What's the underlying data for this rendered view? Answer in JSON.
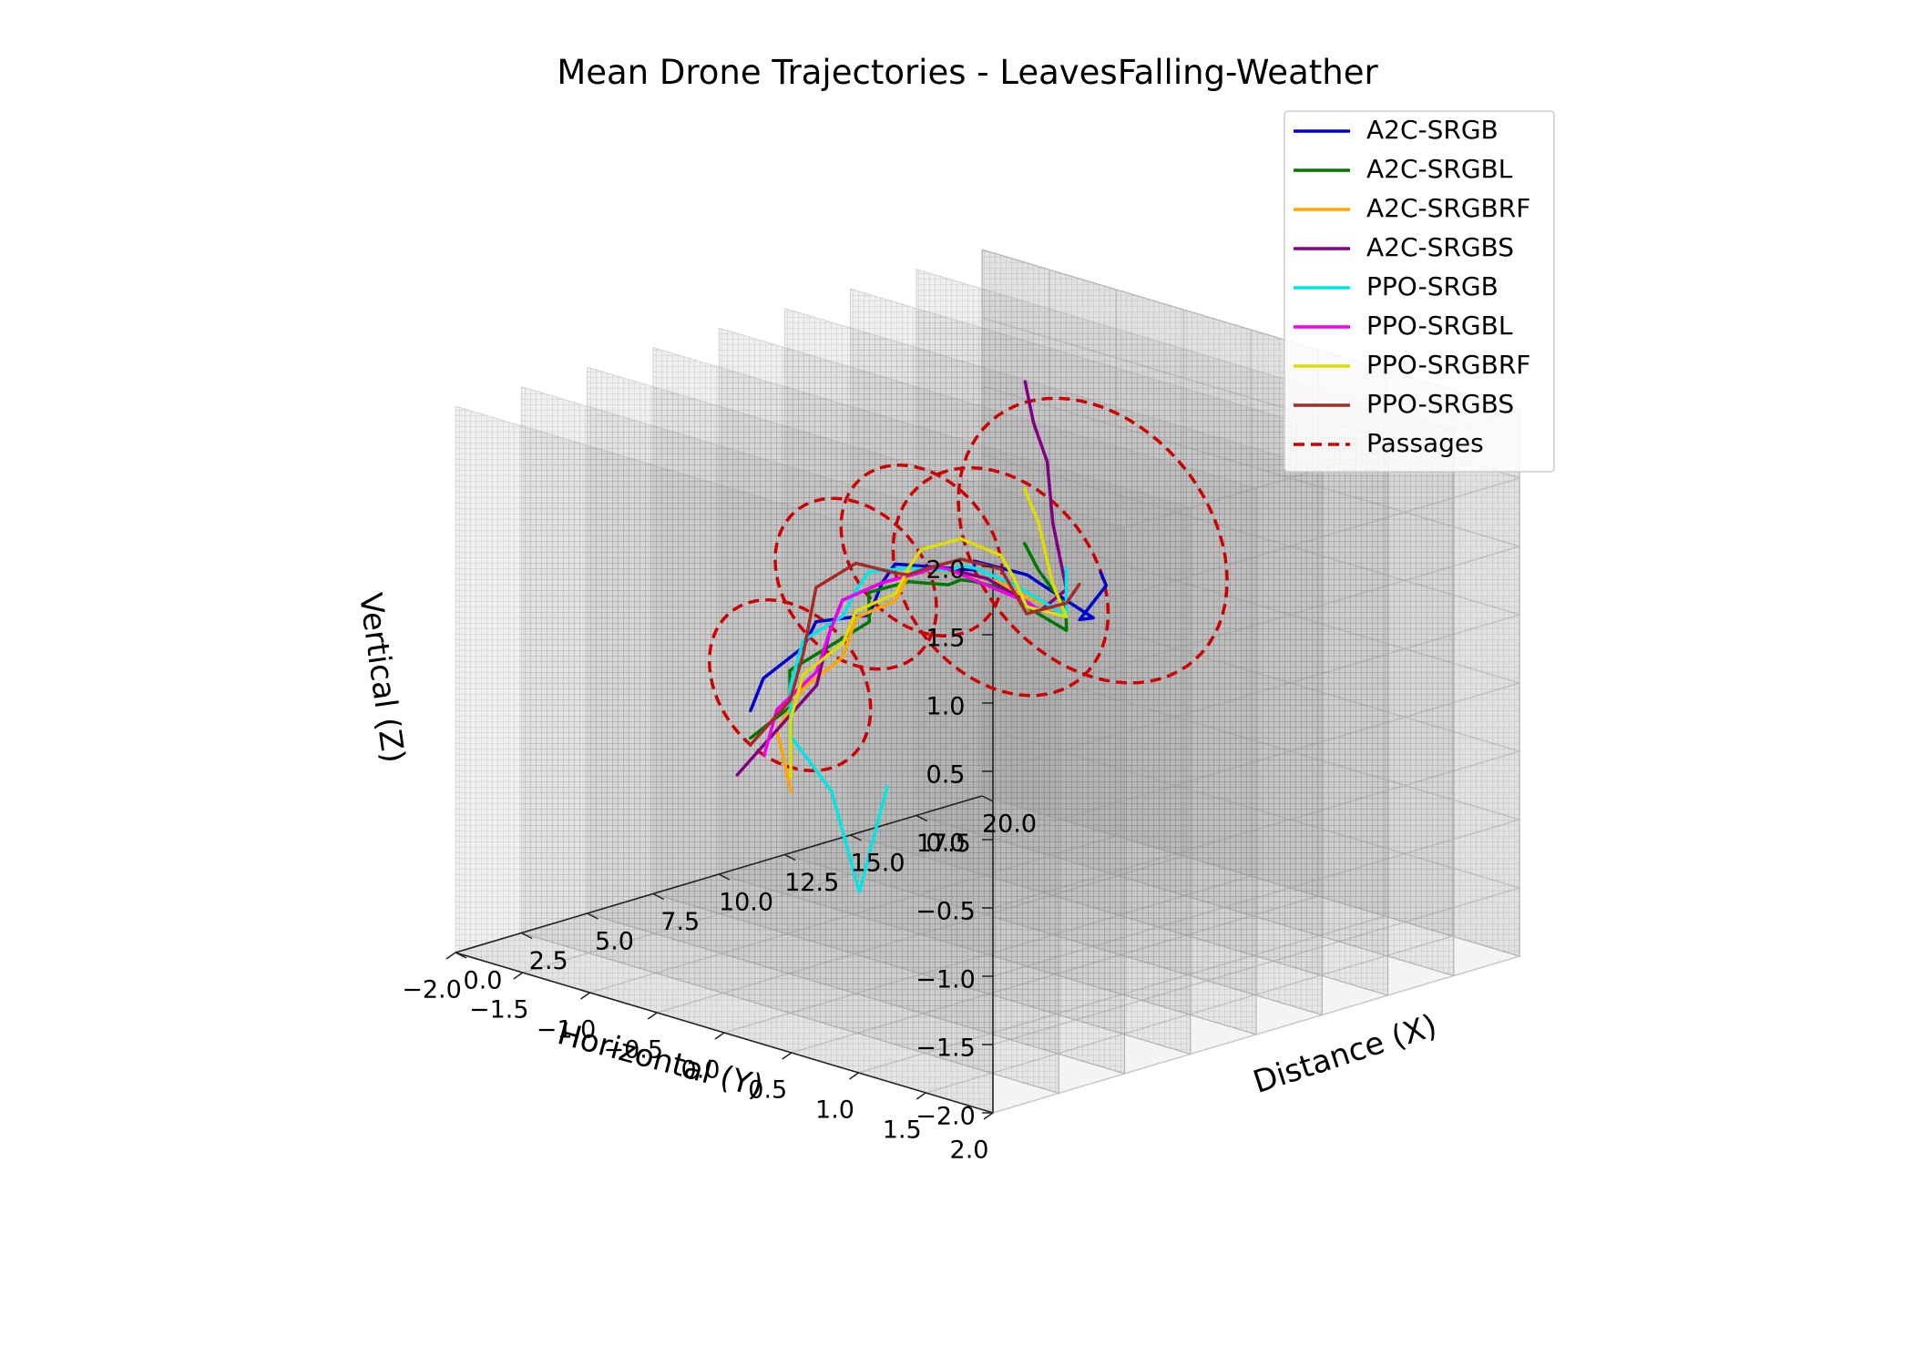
{
  "chart_data": {
    "type": "line3d",
    "title": "Mean Drone Trajectories - LeavesFalling-Weather",
    "xlabel": "Distance (X)",
    "ylabel": "Horizontal (Y)",
    "zlabel": "Vertical (Z)",
    "xlim": [
      0,
      20
    ],
    "ylim": [
      -2,
      2
    ],
    "zlim": [
      -2,
      2
    ],
    "x_ticks": [
      "0.0",
      "2.5",
      "5.0",
      "7.5",
      "10.0",
      "12.5",
      "15.0",
      "17.5",
      "20.0"
    ],
    "y_ticks": [
      "2.0",
      "1.5",
      "1.0",
      "0.5",
      "0.0",
      "−0.5",
      "−1.0",
      "−1.5",
      "−2.0"
    ],
    "z_ticks": [
      "2.0",
      "1.5",
      "1.0",
      "0.5",
      "0.0",
      "−0.5",
      "−1.0",
      "−1.5",
      "−2.0"
    ],
    "grid": true,
    "legend_position": "top-right",
    "series": [
      {
        "name": "A2C-SRGB",
        "color": "#0000cc",
        "points": [
          [
            1.0,
            0.0,
            0.3
          ],
          [
            2.0,
            -0.1,
            0.45
          ],
          [
            3.0,
            0.0,
            0.65
          ],
          [
            4.0,
            -0.1,
            0.75
          ],
          [
            5.0,
            0.1,
            0.8
          ],
          [
            6.0,
            0.0,
            0.95
          ],
          [
            7.0,
            -0.1,
            1.0
          ],
          [
            8.0,
            0.0,
            0.95
          ],
          [
            9.0,
            0.1,
            0.9
          ],
          [
            10.0,
            -0.1,
            0.85
          ],
          [
            11.0,
            0.1,
            0.75
          ],
          [
            12.0,
            0.0,
            0.6
          ],
          [
            13.0,
            0.2,
            0.35
          ],
          [
            13.5,
            0.0,
            0.25
          ],
          [
            14.0,
            0.1,
            0.5
          ],
          [
            14.3,
            0.0,
            0.55
          ]
        ]
      },
      {
        "name": "A2C-SRGBL",
        "color": "#007700",
        "points": [
          [
            1.0,
            0.0,
            0.1
          ],
          [
            2.0,
            0.1,
            0.3
          ],
          [
            3.0,
            -0.1,
            0.45
          ],
          [
            4.0,
            0.0,
            0.6
          ],
          [
            5.0,
            0.1,
            0.75
          ],
          [
            6.0,
            -0.1,
            0.85
          ],
          [
            7.0,
            0.0,
            0.9
          ],
          [
            8.0,
            0.1,
            0.85
          ],
          [
            9.0,
            0.0,
            0.8
          ],
          [
            10.0,
            -0.1,
            0.7
          ],
          [
            11.0,
            0.0,
            0.6
          ],
          [
            12.0,
            -0.1,
            0.4
          ],
          [
            13.0,
            0.0,
            0.2
          ],
          [
            14.0,
            -0.2,
            0.25
          ],
          [
            15.0,
            -0.6,
            0.35
          ],
          [
            16.0,
            -0.9,
            0.4
          ]
        ]
      },
      {
        "name": "A2C-SRGBRF",
        "color": "#ffa500",
        "points": [
          [
            1.0,
            0.3,
            -0.2
          ],
          [
            2.0,
            0.0,
            0.1
          ],
          [
            3.0,
            0.0,
            0.35
          ],
          [
            4.0,
            0.1,
            0.55
          ],
          [
            5.0,
            0.0,
            0.75
          ],
          [
            6.0,
            0.1,
            0.85
          ],
          [
            7.0,
            0.0,
            0.95
          ],
          [
            8.0,
            -0.1,
            0.9
          ],
          [
            9.0,
            0.0,
            0.85
          ],
          [
            10.0,
            0.1,
            0.75
          ],
          [
            11.0,
            0.0,
            0.6
          ],
          [
            12.0,
            0.1,
            0.45
          ],
          [
            13.0,
            0.0,
            0.3
          ]
        ]
      },
      {
        "name": "A2C-SRGBS",
        "color": "#800080",
        "points": [
          [
            1.0,
            -0.1,
            -0.2
          ],
          [
            2.0,
            0.0,
            0.1
          ],
          [
            3.0,
            0.1,
            0.4
          ],
          [
            4.0,
            0.0,
            0.7
          ],
          [
            5.0,
            -0.1,
            0.85
          ],
          [
            6.0,
            0.0,
            0.95
          ],
          [
            7.0,
            0.1,
            1.0
          ],
          [
            8.0,
            0.0,
            0.95
          ],
          [
            9.0,
            -0.1,
            0.85
          ],
          [
            10.0,
            0.0,
            0.75
          ],
          [
            11.0,
            0.1,
            0.55
          ],
          [
            12.0,
            0.0,
            0.4
          ],
          [
            13.0,
            0.0,
            0.5
          ],
          [
            13.5,
            -0.2,
            0.9
          ],
          [
            13.8,
            -0.3,
            1.3
          ],
          [
            14.3,
            -0.5,
            1.5
          ],
          [
            15.0,
            -0.7,
            1.7
          ]
        ]
      },
      {
        "name": "PPO-SRGB",
        "color": "#00e5e5",
        "points": [
          [
            -3.0,
            1.8,
            0.5
          ],
          [
            -1.5,
            1.3,
            -0.5
          ],
          [
            0.0,
            0.8,
            0.0
          ],
          [
            1.0,
            0.3,
            0.2
          ],
          [
            2.0,
            0.1,
            0.45
          ],
          [
            3.0,
            0.0,
            0.7
          ],
          [
            4.0,
            0.1,
            0.85
          ],
          [
            5.0,
            0.0,
            0.95
          ],
          [
            6.0,
            -0.1,
            1.0
          ],
          [
            7.0,
            0.0,
            1.0
          ],
          [
            8.0,
            0.1,
            0.95
          ],
          [
            9.0,
            0.0,
            0.9
          ],
          [
            10.0,
            -0.1,
            0.8
          ],
          [
            11.0,
            0.0,
            0.65
          ],
          [
            12.0,
            0.1,
            0.45
          ],
          [
            13.0,
            0.0,
            0.3
          ],
          [
            13.5,
            -0.1,
            0.6
          ]
        ]
      },
      {
        "name": "PPO-SRGBL",
        "color": "#ee00ee",
        "points": [
          [
            1.0,
            0.1,
            0.0
          ],
          [
            2.0,
            0.0,
            0.25
          ],
          [
            3.0,
            0.1,
            0.5
          ],
          [
            4.0,
            0.0,
            0.7
          ],
          [
            5.0,
            -0.1,
            0.85
          ],
          [
            6.0,
            0.0,
            0.95
          ],
          [
            7.0,
            0.1,
            1.0
          ],
          [
            8.0,
            0.0,
            0.95
          ],
          [
            9.0,
            -0.1,
            0.85
          ],
          [
            10.0,
            0.0,
            0.7
          ],
          [
            11.0,
            0.1,
            0.55
          ],
          [
            12.0,
            0.0,
            0.4
          ],
          [
            13.0,
            -0.1,
            0.3
          ]
        ]
      },
      {
        "name": "PPO-SRGBRF",
        "color": "#dddd00",
        "points": [
          [
            1.0,
            0.3,
            -0.1
          ],
          [
            2.0,
            0.1,
            0.2
          ],
          [
            3.0,
            0.0,
            0.45
          ],
          [
            4.0,
            0.1,
            0.65
          ],
          [
            5.0,
            0.0,
            0.8
          ],
          [
            6.0,
            0.1,
            0.9
          ],
          [
            7.0,
            0.0,
            1.0
          ],
          [
            8.0,
            -0.1,
            1.05
          ],
          [
            9.0,
            0.0,
            1.1
          ],
          [
            10.0,
            0.1,
            0.95
          ],
          [
            11.0,
            0.0,
            0.7
          ],
          [
            12.0,
            -0.1,
            0.4
          ],
          [
            13.0,
            0.0,
            0.3
          ],
          [
            14.0,
            -0.3,
            0.4
          ],
          [
            15.0,
            -0.6,
            0.7
          ],
          [
            16.0,
            -0.9,
            0.8
          ]
        ]
      },
      {
        "name": "PPO-SRGBS",
        "color": "#a52a2a",
        "points": [
          [
            1.0,
            0.0,
            0.05
          ],
          [
            2.0,
            0.1,
            0.35
          ],
          [
            3.0,
            0.0,
            0.6
          ],
          [
            4.0,
            -0.1,
            1.0
          ],
          [
            5.0,
            0.0,
            1.15
          ],
          [
            6.0,
            0.1,
            1.05
          ],
          [
            7.0,
            0.0,
            0.95
          ],
          [
            8.0,
            -0.1,
            0.9
          ],
          [
            9.0,
            0.0,
            0.95
          ],
          [
            10.0,
            0.1,
            0.85
          ],
          [
            11.0,
            0.0,
            0.6
          ],
          [
            12.0,
            -0.1,
            0.35
          ],
          [
            13.0,
            0.0,
            0.4
          ],
          [
            14.0,
            -0.1,
            0.45
          ]
        ]
      }
    ],
    "passages": {
      "name": "Passages",
      "color": "#cc0000",
      "circles": [
        {
          "x": 2.5,
          "y": 0.0,
          "z": 0.4,
          "r": 0.6
        },
        {
          "x": 5.0,
          "y": 0.0,
          "z": 1.0,
          "r": 0.6
        },
        {
          "x": 7.5,
          "y": 0.0,
          "z": 1.1,
          "r": 0.6
        },
        {
          "x": 10.5,
          "y": 0.0,
          "z": 0.7,
          "r": 0.8
        },
        {
          "x": 14.0,
          "y": 0.0,
          "z": 0.8,
          "r": 1.0
        }
      ]
    },
    "walls": [
      0,
      2.5,
      5,
      7.5,
      10,
      12.5,
      15,
      17.5,
      20
    ]
  }
}
